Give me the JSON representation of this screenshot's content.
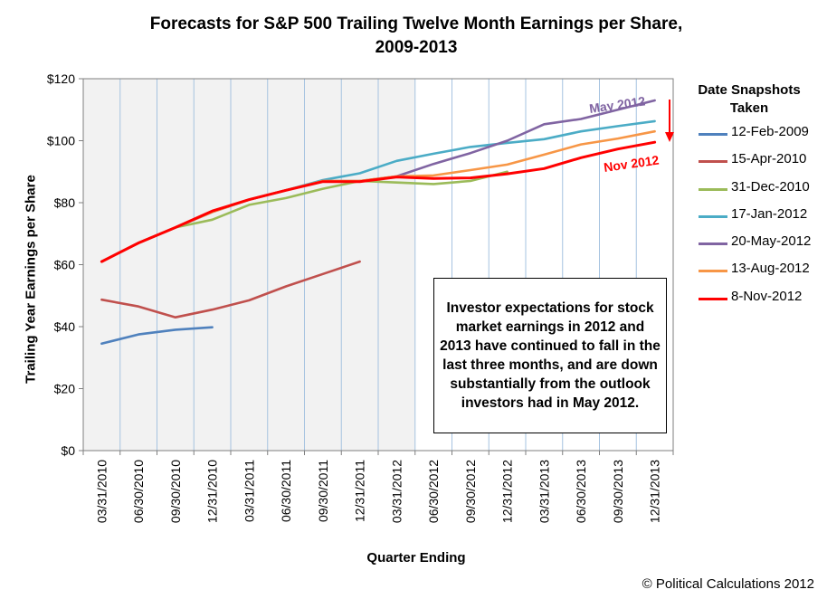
{
  "chart_data": {
    "type": "line",
    "title_line1": "Forecasts  for S&P 500 Trailing Twelve Month Earnings per Share,",
    "title_line2": "2009-2013",
    "xlabel": "Quarter Ending",
    "ylabel": "Trailing Year Earnings per Share",
    "ylim": [
      0,
      120
    ],
    "yticks": [
      "$0",
      "$20",
      "$40",
      "$60",
      "$80",
      "$100",
      "$120"
    ],
    "categories": [
      "03/31/2010",
      "06/30/2010",
      "09/30/2010",
      "12/31/2010",
      "03/31/2011",
      "06/30/2011",
      "09/30/2011",
      "12/31/2011",
      "03/31/2012",
      "06/30/2012",
      "09/30/2012",
      "12/31/2012",
      "03/31/2013",
      "06/30/2013",
      "09/30/2013",
      "12/31/2013"
    ],
    "grid": "vertical",
    "shaded_region_end_category": "03/31/2012",
    "legend_title": "Date Snapshots Taken",
    "legend_position": "right",
    "series": [
      {
        "name": "12-Feb-2009",
        "color": "#4f81bd",
        "values": [
          34.5,
          37.5,
          39,
          39.8,
          null,
          null,
          null,
          null,
          null,
          null,
          null,
          null,
          null,
          null,
          null,
          null
        ]
      },
      {
        "name": "15-Apr-2010",
        "color": "#c0504d",
        "values": [
          48.7,
          46.5,
          43,
          45.5,
          48.5,
          53,
          57,
          61,
          null,
          null,
          null,
          null,
          null,
          null,
          null,
          null
        ]
      },
      {
        "name": "31-Dec-2010",
        "color": "#9bbb59",
        "values": [
          61,
          67,
          72,
          74.5,
          79.3,
          81.5,
          84.5,
          87,
          86.5,
          86,
          87,
          90,
          null,
          null,
          null,
          null
        ]
      },
      {
        "name": "17-Jan-2012",
        "color": "#4bacc6",
        "values": [
          61,
          67,
          72,
          77,
          81,
          84,
          87.3,
          89.5,
          93.5,
          95.8,
          98,
          99.3,
          100.5,
          103,
          104.7,
          106.3
        ]
      },
      {
        "name": "20-May-2012",
        "color": "#8064a2",
        "values": [
          61,
          67,
          72,
          77,
          81,
          84,
          87,
          87,
          88.5,
          92.5,
          96,
          100,
          105.3,
          107,
          110,
          113
        ]
      },
      {
        "name": "13-Aug-2012",
        "color": "#f79646",
        "values": [
          61,
          67,
          72,
          77,
          81,
          84,
          87,
          87,
          88.5,
          88.8,
          90.5,
          92.3,
          95.5,
          98.8,
          100.7,
          103
        ]
      },
      {
        "name": "8-Nov-2012",
        "color": "#ff0000",
        "values": [
          61,
          67,
          72,
          77.3,
          81,
          84,
          86.8,
          86.8,
          88.3,
          87.8,
          88,
          89.3,
          91,
          94.5,
          97.3,
          99.5
        ]
      }
    ],
    "annotations": {
      "may_label": "May 2012",
      "nov_label": "Nov 2012",
      "box_text": "Investor expectations for stock market earnings in 2012 and 2013 have continued to fall in the last three months, and are down substantially from the outlook investors had in May 2012."
    }
  },
  "credit": "© Political Calculations 2012"
}
